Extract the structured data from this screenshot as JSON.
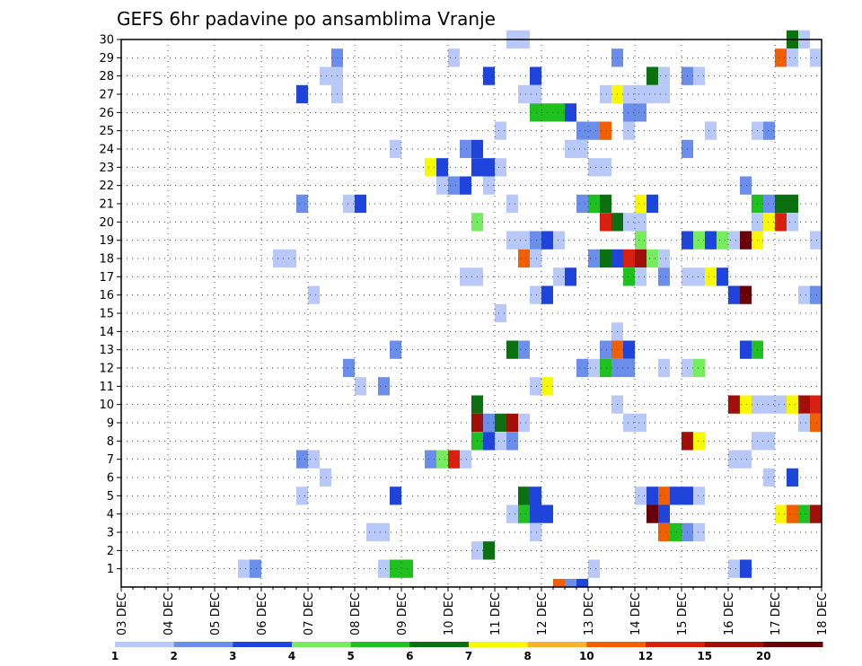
{
  "chart_data": {
    "type": "heatmap",
    "title": "GEFS 6hr padavine po ansamblima Vranje",
    "xlabel": "",
    "ylabel": "",
    "x_ticks": [
      "03 DEC",
      "04 DEC",
      "05 DEC",
      "06 DEC",
      "07 DEC",
      "08 DEC",
      "09 DEC",
      "10 DEC",
      "11 DEC",
      "12 DEC",
      "13 DEC",
      "14 DEC",
      "15 DEC",
      "16 DEC",
      "17 DEC",
      "18 DEC"
    ],
    "x_range_days": [
      0,
      15
    ],
    "steps_per_day": 4,
    "y_members": [
      1,
      30
    ],
    "y_ticks": [
      1,
      2,
      3,
      4,
      5,
      6,
      7,
      8,
      9,
      10,
      11,
      12,
      13,
      14,
      15,
      16,
      17,
      18,
      19,
      20,
      21,
      22,
      23,
      24,
      25,
      26,
      27,
      28,
      29,
      30
    ],
    "legend": {
      "thresholds": [
        1,
        2,
        3,
        4,
        5,
        6,
        7,
        8,
        10,
        12,
        15,
        20
      ],
      "colors": [
        "#b8c8f8",
        "#6a8eea",
        "#1e44dc",
        "#78ec60",
        "#20c020",
        "#0a7010",
        "#f8f800",
        "#f8b030",
        "#f06000",
        "#d82010",
        "#a01008",
        "#680008"
      ]
    },
    "units": "mm / 6h (color class index 1-12)",
    "cells": [
      [
        30,
        [
          [
            8.25,
            1
          ],
          [
            8.5,
            1
          ],
          [
            14.25,
            6
          ],
          [
            14.5,
            1
          ]
        ]
      ],
      [
        29,
        [
          [
            4.5,
            2
          ],
          [
            7,
            1
          ],
          [
            10.5,
            2
          ],
          [
            14,
            9
          ],
          [
            14.25,
            1
          ],
          [
            14.75,
            1
          ]
        ]
      ],
      [
        28,
        [
          [
            4.25,
            1
          ],
          [
            4.5,
            1
          ],
          [
            7.75,
            3
          ],
          [
            8.75,
            3
          ],
          [
            11.25,
            6
          ],
          [
            11.5,
            1
          ],
          [
            12,
            2
          ],
          [
            12.25,
            1
          ]
        ]
      ],
      [
        27,
        [
          [
            3.75,
            3
          ],
          [
            4.5,
            1
          ],
          [
            8.5,
            1
          ],
          [
            8.75,
            1
          ],
          [
            10.25,
            1
          ],
          [
            10.5,
            7
          ],
          [
            10.75,
            1
          ],
          [
            11,
            1
          ],
          [
            11.25,
            1
          ],
          [
            11.5,
            1
          ]
        ]
      ],
      [
        26,
        [
          [
            8.75,
            5
          ],
          [
            9,
            5
          ],
          [
            9.25,
            5
          ],
          [
            9.5,
            3
          ],
          [
            10.75,
            2
          ],
          [
            11,
            2
          ]
        ]
      ],
      [
        25,
        [
          [
            8,
            1
          ],
          [
            9.75,
            2
          ],
          [
            10,
            2
          ],
          [
            10.25,
            9
          ],
          [
            10.75,
            1
          ],
          [
            12.5,
            1
          ],
          [
            13.5,
            1
          ],
          [
            13.75,
            2
          ]
        ]
      ],
      [
        24,
        [
          [
            5.75,
            1
          ],
          [
            7.25,
            2
          ],
          [
            7.5,
            3
          ],
          [
            9.5,
            1
          ],
          [
            9.75,
            1
          ],
          [
            12,
            2
          ]
        ]
      ],
      [
        23,
        [
          [
            6.5,
            7
          ],
          [
            6.75,
            3
          ],
          [
            7.5,
            3
          ],
          [
            7.75,
            3
          ],
          [
            8,
            1
          ],
          [
            10,
            1
          ],
          [
            10.25,
            1
          ]
        ]
      ],
      [
        22,
        [
          [
            6.75,
            1
          ],
          [
            7,
            2
          ],
          [
            7.25,
            3
          ],
          [
            7.75,
            1
          ],
          [
            13.25,
            2
          ]
        ]
      ],
      [
        21,
        [
          [
            3.75,
            2
          ],
          [
            4.75,
            1
          ],
          [
            5,
            3
          ],
          [
            8.25,
            1
          ],
          [
            9.75,
            2
          ],
          [
            10,
            5
          ],
          [
            10.25,
            6
          ],
          [
            11,
            7
          ],
          [
            11.25,
            3
          ],
          [
            13.5,
            5
          ],
          [
            13.75,
            2
          ],
          [
            14,
            6
          ],
          [
            14.25,
            6
          ]
        ]
      ],
      [
        20,
        [
          [
            7.5,
            4
          ],
          [
            10.25,
            10
          ],
          [
            10.5,
            6
          ],
          [
            10.75,
            1
          ],
          [
            11,
            1
          ],
          [
            13.5,
            1
          ],
          [
            13.75,
            7
          ],
          [
            14,
            10
          ],
          [
            14.25,
            1
          ]
        ]
      ],
      [
        19,
        [
          [
            8.25,
            1
          ],
          [
            8.5,
            1
          ],
          [
            8.75,
            2
          ],
          [
            9,
            3
          ],
          [
            9.25,
            1
          ],
          [
            11,
            4
          ],
          [
            12,
            3
          ],
          [
            12.25,
            4
          ],
          [
            12.5,
            3
          ],
          [
            12.75,
            4
          ],
          [
            13,
            1
          ],
          [
            13.25,
            12
          ],
          [
            13.5,
            7
          ],
          [
            14.75,
            1
          ]
        ]
      ],
      [
        18,
        [
          [
            3.25,
            1
          ],
          [
            3.5,
            1
          ],
          [
            8.5,
            9
          ],
          [
            8.75,
            1
          ],
          [
            10,
            2
          ],
          [
            10.25,
            6
          ],
          [
            10.5,
            3
          ],
          [
            10.75,
            10
          ],
          [
            11,
            11
          ],
          [
            11.25,
            4
          ],
          [
            11.5,
            1
          ]
        ]
      ],
      [
        17,
        [
          [
            7.25,
            1
          ],
          [
            7.5,
            1
          ],
          [
            9.25,
            1
          ],
          [
            9.5,
            3
          ],
          [
            10.75,
            5
          ],
          [
            11,
            1
          ],
          [
            11.5,
            2
          ],
          [
            12,
            1
          ],
          [
            12.25,
            1
          ],
          [
            12.5,
            7
          ],
          [
            12.75,
            3
          ]
        ]
      ],
      [
        16,
        [
          [
            4,
            1
          ],
          [
            8.75,
            1
          ],
          [
            9,
            3
          ],
          [
            13,
            3
          ],
          [
            13.25,
            12
          ],
          [
            14.5,
            1
          ],
          [
            14.75,
            2
          ]
        ]
      ],
      [
        15,
        [
          [
            8,
            1
          ]
        ]
      ],
      [
        14,
        [
          [
            10.5,
            1
          ]
        ]
      ],
      [
        13,
        [
          [
            5.75,
            2
          ],
          [
            8.25,
            6
          ],
          [
            8.5,
            2
          ],
          [
            10.25,
            2
          ],
          [
            10.5,
            9
          ],
          [
            10.75,
            3
          ],
          [
            13.25,
            3
          ],
          [
            13.5,
            5
          ]
        ]
      ],
      [
        12,
        [
          [
            4.75,
            2
          ],
          [
            9.75,
            2
          ],
          [
            10,
            1
          ],
          [
            10.25,
            5
          ],
          [
            10.5,
            2
          ],
          [
            10.75,
            2
          ],
          [
            11.5,
            1
          ],
          [
            12,
            1
          ],
          [
            12.25,
            4
          ]
        ]
      ],
      [
        11,
        [
          [
            5,
            1
          ],
          [
            5.5,
            2
          ],
          [
            8.75,
            1
          ],
          [
            9,
            7
          ]
        ]
      ],
      [
        10,
        [
          [
            7.5,
            6
          ],
          [
            10.5,
            1
          ],
          [
            13,
            11
          ],
          [
            13.25,
            7
          ],
          [
            13.5,
            1
          ],
          [
            13.75,
            1
          ],
          [
            14,
            1
          ],
          [
            14.25,
            7
          ],
          [
            14.5,
            11
          ],
          [
            14.75,
            10
          ]
        ]
      ],
      [
        9,
        [
          [
            7.5,
            11
          ],
          [
            7.75,
            2
          ],
          [
            8,
            6
          ],
          [
            8.25,
            11
          ],
          [
            8.5,
            1
          ],
          [
            10.75,
            1
          ],
          [
            11,
            1
          ],
          [
            14.5,
            1
          ],
          [
            14.75,
            9
          ]
        ]
      ],
      [
        8,
        [
          [
            7.5,
            5
          ],
          [
            7.75,
            3
          ],
          [
            8,
            1
          ],
          [
            8.25,
            2
          ],
          [
            12,
            11
          ],
          [
            12.25,
            7
          ],
          [
            13.5,
            1
          ],
          [
            13.75,
            1
          ]
        ]
      ],
      [
        7,
        [
          [
            3.75,
            2
          ],
          [
            4,
            1
          ],
          [
            6.5,
            2
          ],
          [
            6.75,
            4
          ],
          [
            7,
            10
          ],
          [
            7.25,
            1
          ],
          [
            13,
            1
          ],
          [
            13.25,
            1
          ]
        ]
      ],
      [
        6,
        [
          [
            4.25,
            1
          ],
          [
            13.75,
            1
          ],
          [
            14.25,
            3
          ]
        ]
      ],
      [
        5,
        [
          [
            3.75,
            1
          ],
          [
            5.75,
            3
          ],
          [
            8.5,
            6
          ],
          [
            8.75,
            3
          ],
          [
            11,
            1
          ],
          [
            11.25,
            3
          ],
          [
            11.5,
            9
          ],
          [
            11.75,
            3
          ],
          [
            12,
            3
          ],
          [
            12.25,
            1
          ]
        ]
      ],
      [
        4,
        [
          [
            8.25,
            1
          ],
          [
            8.5,
            5
          ],
          [
            8.75,
            3
          ],
          [
            9,
            3
          ],
          [
            11.25,
            12
          ],
          [
            11.5,
            3
          ],
          [
            14,
            7
          ],
          [
            14.25,
            9
          ],
          [
            14.5,
            5
          ],
          [
            14.75,
            11
          ]
        ]
      ],
      [
        3,
        [
          [
            5.25,
            1
          ],
          [
            5.5,
            1
          ],
          [
            8.75,
            1
          ],
          [
            11.5,
            9
          ],
          [
            11.75,
            5
          ],
          [
            12,
            2
          ],
          [
            12.25,
            1
          ]
        ]
      ],
      [
        2,
        [
          [
            7.5,
            1
          ],
          [
            7.75,
            6
          ]
        ]
      ],
      [
        1,
        [
          [
            2.5,
            1
          ],
          [
            2.75,
            2
          ],
          [
            5.5,
            1
          ],
          [
            5.75,
            5
          ],
          [
            6,
            5
          ],
          [
            10,
            1
          ],
          [
            13,
            1
          ],
          [
            13.25,
            3
          ]
        ]
      ],
      [
        0,
        [
          [
            9.25,
            9
          ],
          [
            9.5,
            2
          ],
          [
            9.75,
            3
          ]
        ]
      ]
    ]
  }
}
